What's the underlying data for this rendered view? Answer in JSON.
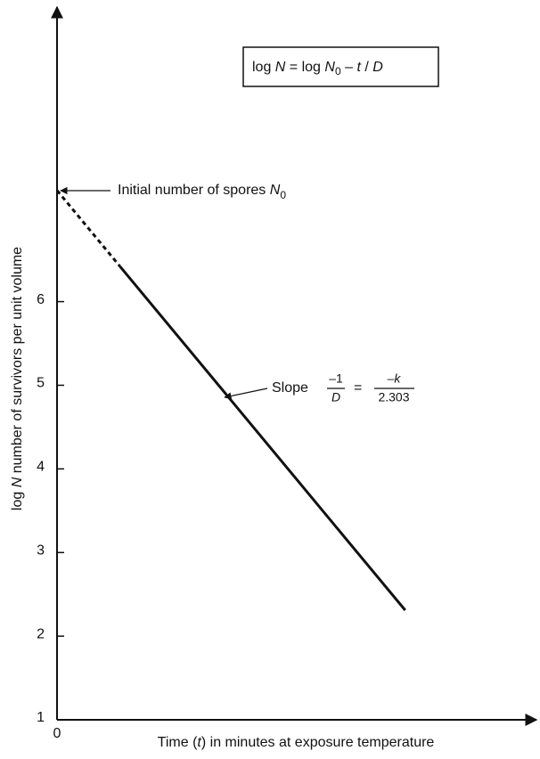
{
  "chart_data": {
    "type": "line",
    "formula": [
      "log ",
      "N",
      " = log ",
      "N",
      "0",
      " – ",
      "t",
      " / ",
      "D"
    ],
    "initial_annotation": [
      "Initial number of spores ",
      "N",
      "0"
    ],
    "slope_annotation": {
      "label": "Slope",
      "num1": "–1",
      "den1": "D",
      "eq": "=",
      "num2": "–k",
      "den2": "2.303"
    },
    "ylabel": [
      "log ",
      "N",
      " number of survivors per unit volume"
    ],
    "xlabel": [
      "Time (",
      "t",
      ") in minutes at exposure temperature"
    ],
    "xlim": [
      0,
      10
    ],
    "xticks": [
      0
    ],
    "ylim": [
      1,
      9.5
    ],
    "yticks": [
      1,
      2,
      3,
      4,
      5,
      6
    ],
    "series": [
      {
        "color": "#111111",
        "style": "dashed",
        "x": [
          0,
          1.32
        ],
        "values": [
          7.33,
          6.42
        ]
      },
      {
        "color": "#111111",
        "style": "solid",
        "x": [
          1.32,
          7.29
        ],
        "values": [
          6.42,
          2.31
        ]
      }
    ]
  }
}
